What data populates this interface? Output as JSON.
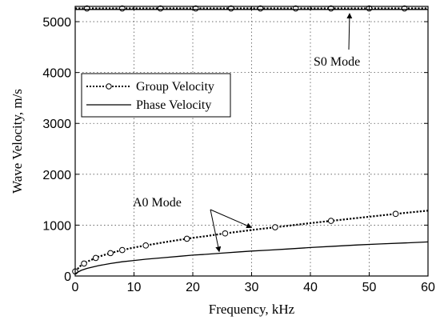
{
  "chart_data": {
    "type": "line",
    "xlabel": "Frequency, kHz",
    "ylabel": "Wave Velocity, m/s",
    "xlim": [
      0,
      60
    ],
    "ylim": [
      0,
      5300
    ],
    "xticks": [
      "0",
      "10",
      "20",
      "30",
      "40",
      "50",
      "60"
    ],
    "yticks": [
      "0",
      "1000",
      "2000",
      "3000",
      "4000",
      "5000"
    ],
    "grid": "dotted",
    "legend_position": "upper-left",
    "series": [
      {
        "name": "Group Velocity",
        "style": "dotted-with-circles",
        "mode": "S0",
        "x": [
          0,
          10,
          20,
          30,
          40,
          50,
          60
        ],
        "y": [
          5260,
          5260,
          5260,
          5260,
          5260,
          5260,
          5260
        ],
        "markers_x": [
          2,
          8,
          14.5,
          20.5,
          26.5,
          31.5,
          37.5,
          43.5,
          50,
          56
        ]
      },
      {
        "name": "Phase Velocity",
        "style": "solid",
        "mode": "S0",
        "x": [
          0,
          10,
          20,
          30,
          40,
          50,
          60
        ],
        "y": [
          5240,
          5240,
          5240,
          5240,
          5240,
          5240,
          5240
        ]
      },
      {
        "name": "Group Velocity",
        "style": "dotted-with-circles",
        "mode": "A0",
        "x": [
          0,
          1,
          2,
          4,
          6,
          8,
          10,
          12,
          15,
          18,
          20,
          22,
          25,
          28,
          30,
          33,
          36,
          40,
          44,
          48,
          52,
          56,
          60
        ],
        "y": [
          90,
          210,
          280,
          380,
          450,
          510,
          560,
          600,
          660,
          715,
          750,
          780,
          830,
          875,
          905,
          945,
          985,
          1040,
          1090,
          1140,
          1190,
          1240,
          1285
        ],
        "markers_x": [
          0,
          1.5,
          3.5,
          6,
          8,
          12,
          19,
          25.5,
          34,
          43.5,
          54.5
        ]
      },
      {
        "name": "Phase Velocity",
        "style": "solid",
        "mode": "A0",
        "x": [
          0,
          1,
          2,
          4,
          6,
          8,
          10,
          12,
          15,
          18,
          20,
          22,
          25,
          28,
          30,
          33,
          36,
          40,
          44,
          48,
          52,
          56,
          60
        ],
        "y": [
          45,
          110,
          150,
          205,
          245,
          280,
          305,
          330,
          360,
          390,
          410,
          425,
          450,
          475,
          490,
          510,
          530,
          560,
          585,
          610,
          630,
          650,
          670
        ]
      }
    ],
    "annotations": [
      {
        "text": "S0  Mode"
      },
      {
        "text": "A0  Mode"
      }
    ]
  }
}
